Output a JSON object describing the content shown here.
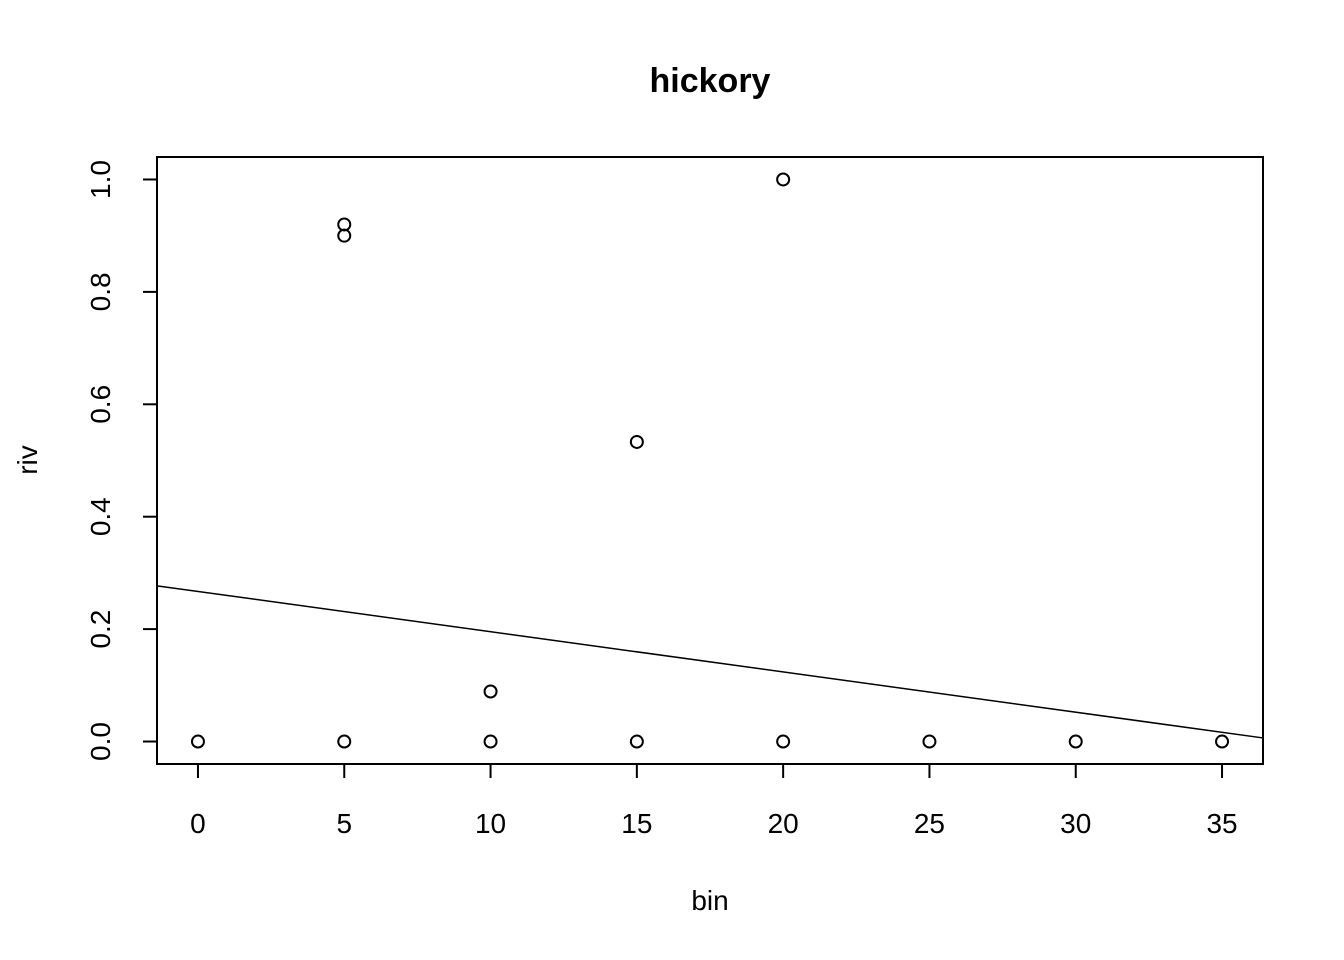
{
  "chart_data": {
    "type": "scatter",
    "title": "hickory",
    "xlabel": "bin",
    "ylabel": "riv",
    "xlim": [
      -1.4,
      36.4
    ],
    "ylim": [
      -0.04,
      1.04
    ],
    "x_ticks": [
      0,
      5,
      10,
      15,
      20,
      25,
      30,
      35
    ],
    "x_tick_labels": [
      "0",
      "5",
      "10",
      "15",
      "20",
      "25",
      "30",
      "35"
    ],
    "y_ticks": [
      0.0,
      0.2,
      0.4,
      0.6,
      0.8,
      1.0
    ],
    "y_tick_labels": [
      "0.0",
      "0.2",
      "0.4",
      "0.6",
      "0.8",
      "1.0"
    ],
    "grid": false,
    "series": [
      {
        "type": "points",
        "marker": "open-circle",
        "points": [
          {
            "x": 0,
            "y": 0.0
          },
          {
            "x": 5,
            "y": 0.0
          },
          {
            "x": 5,
            "y": 0.9
          },
          {
            "x": 5,
            "y": 0.92
          },
          {
            "x": 10,
            "y": 0.0
          },
          {
            "x": 10,
            "y": 0.089
          },
          {
            "x": 15,
            "y": 0.0
          },
          {
            "x": 15,
            "y": 0.533
          },
          {
            "x": 20,
            "y": 0.0
          },
          {
            "x": 20,
            "y": 1.0
          },
          {
            "x": 25,
            "y": 0.0
          },
          {
            "x": 30,
            "y": 0.0
          },
          {
            "x": 35,
            "y": 0.0
          }
        ]
      },
      {
        "type": "line",
        "intercept": 0.267,
        "slope": -0.00716
      }
    ]
  }
}
